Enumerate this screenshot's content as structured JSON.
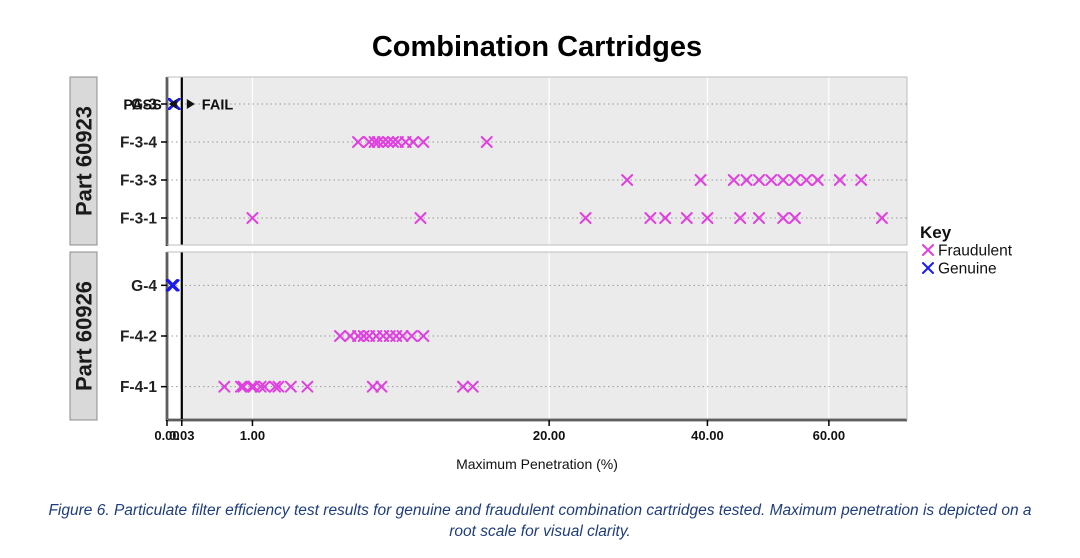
{
  "chart_data": {
    "type": "scatter",
    "title": "Combination Cartridges",
    "xlabel": "Maximum Penetration (%)",
    "x_scale": "sqrt",
    "xlim": [
      0,
      75
    ],
    "x_ticks": [
      {
        "value": 0,
        "label": "0.00"
      },
      {
        "value": 0.03,
        "label": "0.03"
      },
      {
        "value": 1,
        "label": "1.00"
      },
      {
        "value": 20,
        "label": "20.00"
      },
      {
        "value": 40,
        "label": "40.00"
      },
      {
        "value": 60,
        "label": "60.00"
      }
    ],
    "threshold": {
      "value": 0.03,
      "pass_label": "PASS",
      "fail_label": "FAIL"
    },
    "grid": true,
    "legend": {
      "title": "Key",
      "placement": "right",
      "entries": [
        {
          "name": "Fraudulent",
          "color": "#e040e0"
        },
        {
          "name": "Genuine",
          "color": "#1a1aee"
        }
      ]
    },
    "colors": {
      "fraudulent": "#e040e0",
      "genuine": "#1a1aee",
      "fail_region": "#ebebeb",
      "strip_bg": "#d9d9d9"
    },
    "panels": [
      {
        "label": "Part 60923",
        "rows": [
          {
            "label": "G-3",
            "group": "Genuine",
            "values": [
              0.006,
              0.0063,
              0.0066,
              0.0068,
              0.007,
              0.0072,
              0.0074,
              0.0077,
              0.008
            ]
          },
          {
            "label": "F-3-4",
            "group": "Fraudulent",
            "values": [
              5.0,
              5.6,
              5.9,
              6.1,
              6.4,
              6.7,
              7.0,
              7.3,
              7.8,
              8.3,
              9.0,
              14.0
            ]
          },
          {
            "label": "F-3-3",
            "group": "Fraudulent",
            "values": [
              29.0,
              39.0,
              44.0,
              46.0,
              48.0,
              50.0,
              52.0,
              54.0,
              56.0,
              58.0,
              62.0,
              66.0
            ]
          },
          {
            "label": "F-3-1",
            "group": "Fraudulent",
            "values": [
              1.0,
              8.8,
              24.0,
              32.0,
              34.0,
              37.0,
              40.0,
              45.0,
              48.0,
              52.0,
              54.0,
              70.0
            ]
          }
        ]
      },
      {
        "label": "Part 60926",
        "rows": [
          {
            "label": "G-4",
            "group": "Genuine",
            "values": [
              0.003,
              0.0033,
              0.0035,
              0.0037,
              0.0039,
              0.0041,
              0.0043,
              0.0046,
              0.0055,
              0.0062
            ]
          },
          {
            "label": "F-4-2",
            "group": "Fraudulent",
            "values": [
              4.1,
              4.6,
              5.0,
              5.3,
              5.6,
              6.0,
              6.4,
              6.8,
              7.2,
              7.6,
              8.2,
              9.0
            ]
          },
          {
            "label": "F-4-1",
            "group": "Fraudulent",
            "values": [
              0.45,
              0.75,
              0.8,
              0.98,
              1.03,
              1.2,
              1.3,
              1.6,
              1.7,
              2.1,
              2.7,
              5.8,
              6.3,
              12.0,
              12.8
            ]
          }
        ]
      }
    ]
  },
  "caption": "Figure 6. Particulate filter efficiency test results for genuine and fraudulent combination cartridges tested. Maximum penetration is depicted on a root scale for visual clarity."
}
